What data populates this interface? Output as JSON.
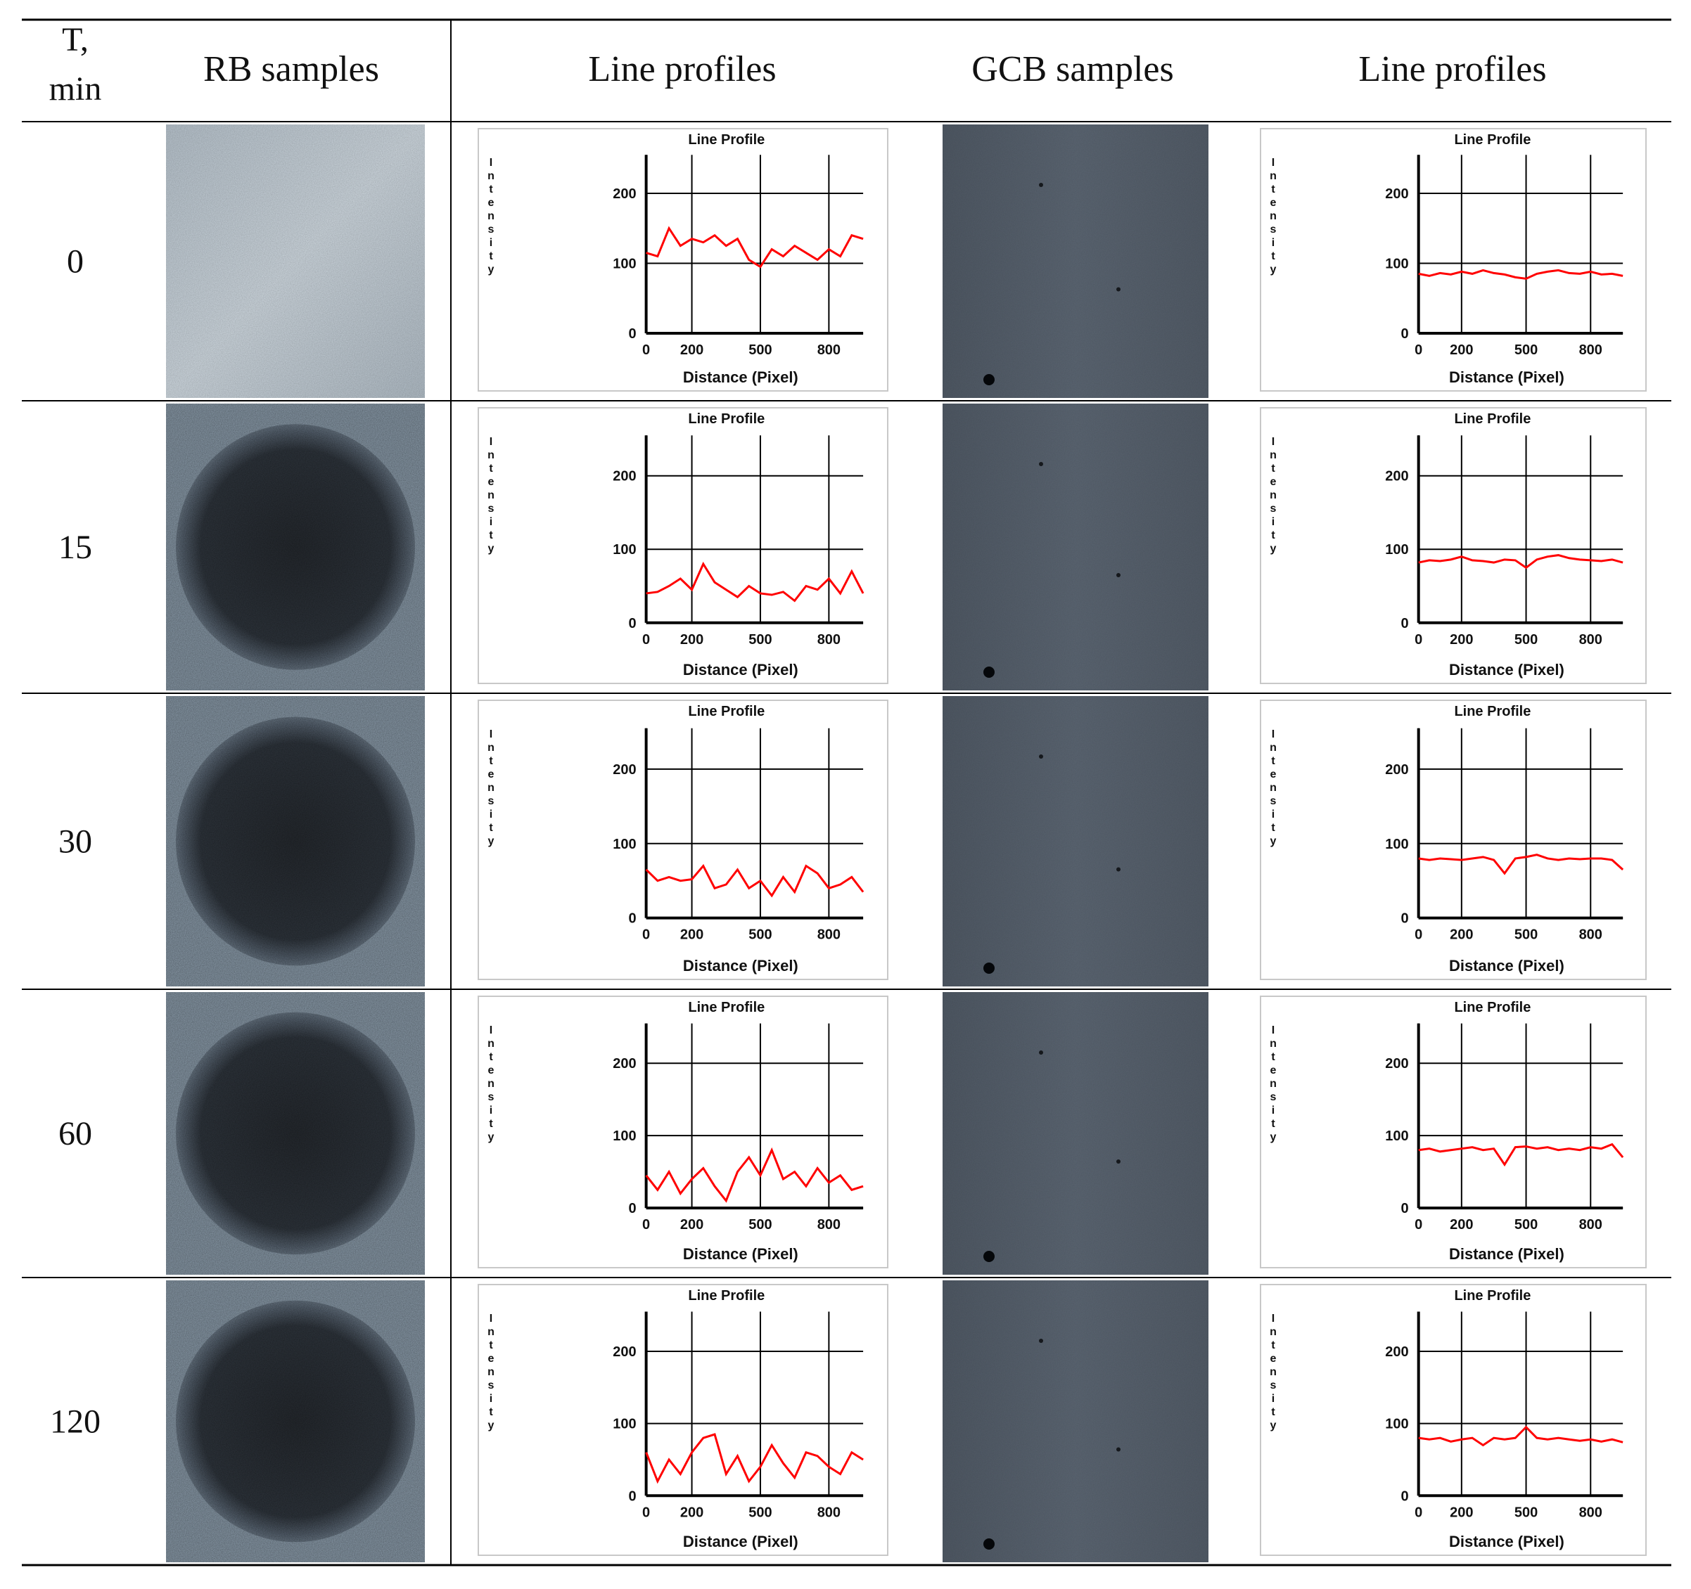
{
  "table": {
    "time_header": [
      "T,",
      "min"
    ],
    "columns": [
      "RB samples",
      "Line profiles",
      "GCB samples",
      "Line profiles"
    ],
    "rows": [
      {
        "time": 0
      },
      {
        "time": 15
      },
      {
        "time": 30
      },
      {
        "time": 60
      },
      {
        "time": 120
      }
    ]
  },
  "chart_data": [
    {
      "type": "line",
      "title": "Line Profile",
      "ylabel": "Intensity",
      "xlabel": "Distance (Pixel)",
      "x": [
        0,
        50,
        100,
        150,
        200,
        250,
        300,
        350,
        400,
        450,
        500,
        550,
        600,
        650,
        700,
        750,
        800,
        850,
        900,
        950
      ],
      "values": [
        115,
        110,
        150,
        125,
        135,
        130,
        140,
        125,
        135,
        105,
        95,
        120,
        110,
        125,
        115,
        105,
        120,
        110,
        140,
        135
      ],
      "color": "#ff0000",
      "xlim": [
        0,
        950
      ],
      "ylim": [
        0,
        255
      ],
      "xticks": [
        0,
        200,
        500,
        800
      ],
      "yticks": [
        0,
        100,
        200
      ],
      "grid": true
    },
    {
      "type": "line",
      "title": "Line Profile",
      "ylabel": "Intensity",
      "xlabel": "Distance (Pixel)",
      "x": [
        0,
        50,
        100,
        150,
        200,
        250,
        300,
        350,
        400,
        450,
        500,
        550,
        600,
        650,
        700,
        750,
        800,
        850,
        900,
        950
      ],
      "values": [
        85,
        82,
        86,
        84,
        88,
        85,
        90,
        86,
        84,
        80,
        78,
        85,
        88,
        90,
        86,
        85,
        88,
        84,
        85,
        82
      ],
      "color": "#ff0000",
      "xlim": [
        0,
        950
      ],
      "ylim": [
        0,
        255
      ],
      "xticks": [
        0,
        200,
        500,
        800
      ],
      "yticks": [
        0,
        100,
        200
      ],
      "grid": true
    },
    {
      "type": "line",
      "title": "Line Profile",
      "ylabel": "Intensity",
      "xlabel": "Distance (Pixel)",
      "x": [
        0,
        50,
        100,
        150,
        200,
        250,
        300,
        350,
        400,
        450,
        500,
        550,
        600,
        650,
        700,
        750,
        800,
        850,
        900,
        950
      ],
      "values": [
        40,
        42,
        50,
        60,
        45,
        80,
        55,
        45,
        35,
        50,
        40,
        38,
        42,
        30,
        50,
        45,
        60,
        40,
        70,
        40
      ],
      "color": "#ff0000",
      "xlim": [
        0,
        950
      ],
      "ylim": [
        0,
        255
      ],
      "xticks": [
        0,
        200,
        500,
        800
      ],
      "yticks": [
        0,
        100,
        200
      ],
      "grid": true
    },
    {
      "type": "line",
      "title": "Line Profile",
      "ylabel": "Intensity",
      "xlabel": "Distance (Pixel)",
      "x": [
        0,
        50,
        100,
        150,
        200,
        250,
        300,
        350,
        400,
        450,
        500,
        550,
        600,
        650,
        700,
        750,
        800,
        850,
        900,
        950
      ],
      "values": [
        82,
        85,
        84,
        86,
        90,
        85,
        84,
        82,
        86,
        85,
        75,
        86,
        90,
        92,
        88,
        86,
        85,
        84,
        86,
        82
      ],
      "color": "#ff0000",
      "xlim": [
        0,
        950
      ],
      "ylim": [
        0,
        255
      ],
      "xticks": [
        0,
        200,
        500,
        800
      ],
      "yticks": [
        0,
        100,
        200
      ],
      "grid": true
    },
    {
      "type": "line",
      "title": "Line Profile",
      "ylabel": "Intensity",
      "xlabel": "Distance (Pixel)",
      "x": [
        0,
        50,
        100,
        150,
        200,
        250,
        300,
        350,
        400,
        450,
        500,
        550,
        600,
        650,
        700,
        750,
        800,
        850,
        900,
        950
      ],
      "values": [
        65,
        50,
        55,
        50,
        52,
        70,
        40,
        45,
        65,
        40,
        50,
        30,
        55,
        35,
        70,
        60,
        40,
        45,
        55,
        35
      ],
      "color": "#ff0000",
      "xlim": [
        0,
        950
      ],
      "ylim": [
        0,
        255
      ],
      "xticks": [
        0,
        200,
        500,
        800
      ],
      "yticks": [
        0,
        100,
        200
      ],
      "grid": true
    },
    {
      "type": "line",
      "title": "Line Profile",
      "ylabel": "Intensity",
      "xlabel": "Distance (Pixel)",
      "x": [
        0,
        50,
        100,
        150,
        200,
        250,
        300,
        350,
        400,
        450,
        500,
        550,
        600,
        650,
        700,
        750,
        800,
        850,
        900,
        950
      ],
      "values": [
        80,
        78,
        80,
        79,
        78,
        80,
        82,
        78,
        60,
        80,
        82,
        85,
        80,
        78,
        80,
        79,
        80,
        80,
        78,
        65
      ],
      "color": "#ff0000",
      "xlim": [
        0,
        950
      ],
      "ylim": [
        0,
        255
      ],
      "xticks": [
        0,
        200,
        500,
        800
      ],
      "yticks": [
        0,
        100,
        200
      ],
      "grid": true
    },
    {
      "type": "line",
      "title": "Line Profile",
      "ylabel": "Intensity",
      "xlabel": "Distance (Pixel)",
      "x": [
        0,
        50,
        100,
        150,
        200,
        250,
        300,
        350,
        400,
        450,
        500,
        550,
        600,
        650,
        700,
        750,
        800,
        850,
        900,
        950
      ],
      "values": [
        45,
        25,
        50,
        20,
        40,
        55,
        30,
        10,
        50,
        70,
        45,
        80,
        40,
        50,
        30,
        55,
        35,
        45,
        25,
        30
      ],
      "color": "#ff0000",
      "xlim": [
        0,
        950
      ],
      "ylim": [
        0,
        255
      ],
      "xticks": [
        0,
        200,
        500,
        800
      ],
      "yticks": [
        0,
        100,
        200
      ],
      "grid": true
    },
    {
      "type": "line",
      "title": "Line Profile",
      "ylabel": "Intensity",
      "xlabel": "Distance (Pixel)",
      "x": [
        0,
        50,
        100,
        150,
        200,
        250,
        300,
        350,
        400,
        450,
        500,
        550,
        600,
        650,
        700,
        750,
        800,
        850,
        900,
        950
      ],
      "values": [
        80,
        82,
        78,
        80,
        82,
        84,
        80,
        82,
        60,
        84,
        85,
        82,
        84,
        80,
        82,
        80,
        84,
        82,
        88,
        70
      ],
      "color": "#ff0000",
      "xlim": [
        0,
        950
      ],
      "ylim": [
        0,
        255
      ],
      "xticks": [
        0,
        200,
        500,
        800
      ],
      "yticks": [
        0,
        100,
        200
      ],
      "grid": true
    },
    {
      "type": "line",
      "title": "Line Profile",
      "ylabel": "Intensity",
      "xlabel": "Distance (Pixel)",
      "x": [
        0,
        50,
        100,
        150,
        200,
        250,
        300,
        350,
        400,
        450,
        500,
        550,
        600,
        650,
        700,
        750,
        800,
        850,
        900,
        950
      ],
      "values": [
        60,
        20,
        50,
        30,
        60,
        80,
        85,
        30,
        55,
        20,
        40,
        70,
        45,
        25,
        60,
        55,
        40,
        30,
        60,
        50
      ],
      "color": "#ff0000",
      "xlim": [
        0,
        950
      ],
      "ylim": [
        0,
        255
      ],
      "xticks": [
        0,
        200,
        500,
        800
      ],
      "yticks": [
        0,
        100,
        200
      ],
      "grid": true
    },
    {
      "type": "line",
      "title": "Line Profile",
      "ylabel": "Intensity",
      "xlabel": "Distance (Pixel)",
      "x": [
        0,
        50,
        100,
        150,
        200,
        250,
        300,
        350,
        400,
        450,
        500,
        550,
        600,
        650,
        700,
        750,
        800,
        850,
        900,
        950
      ],
      "values": [
        80,
        78,
        80,
        75,
        78,
        80,
        70,
        80,
        78,
        80,
        95,
        80,
        78,
        80,
        78,
        76,
        78,
        75,
        78,
        74
      ],
      "color": "#ff0000",
      "xlim": [
        0,
        950
      ],
      "ylim": [
        0,
        255
      ],
      "xticks": [
        0,
        200,
        500,
        800
      ],
      "yticks": [
        0,
        100,
        200
      ],
      "grid": true
    }
  ]
}
